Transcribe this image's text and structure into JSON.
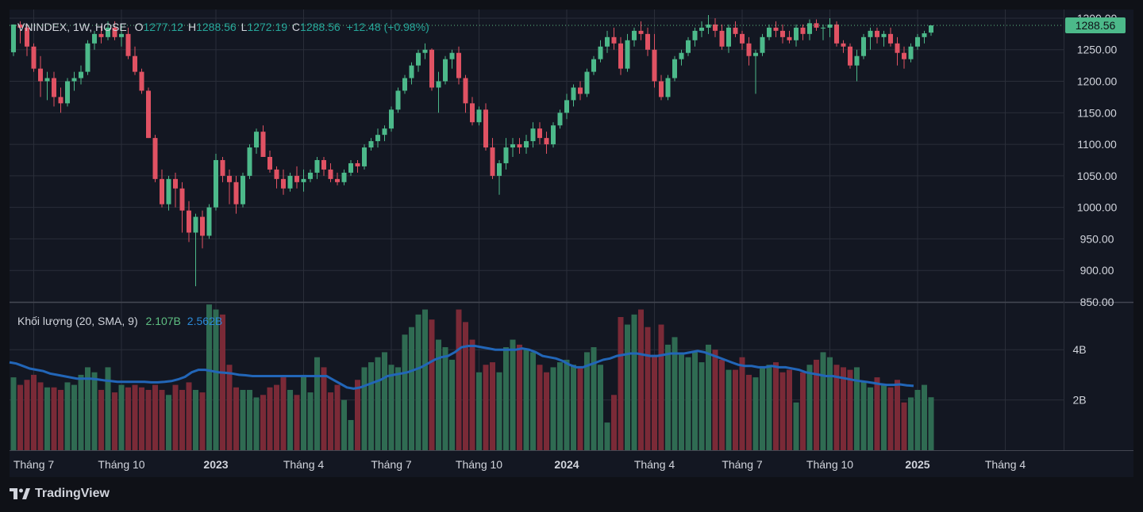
{
  "header": {
    "symbol": "VNINDEX, 1W, HOSE",
    "o_label": "O",
    "o": "1277.12",
    "h_label": "H",
    "h": "1288.56",
    "l_label": "L",
    "l": "1272.19",
    "c_label": "C",
    "c": "1288.56",
    "change": "+12.48 (+0.98%)"
  },
  "volume_legend": {
    "label": "Khối lượng (20, SMA, 9)",
    "volume": "2.107B",
    "sma": "2.562B"
  },
  "brand": "TradingView",
  "colors": {
    "background": "#0f1117",
    "grid": "#2a2e39",
    "up": "#4cb98a",
    "down": "#e05263",
    "up_volume": "#2f6b52",
    "down_volume": "#7a2a37",
    "sma_line": "#2266b8",
    "text": "#d1d4dc",
    "price_label_bg": "#4cb98a"
  },
  "chart_data": {
    "type": "candlestick",
    "title": "VNINDEX, 1W, HOSE",
    "last_price": "1288.56",
    "price_ticks": [
      "1300.00",
      "1250.00",
      "1200.00",
      "1150.00",
      "1100.00",
      "1050.00",
      "1000.00",
      "950.00",
      "900.00",
      "850.00"
    ],
    "price_tick_values": [
      1300,
      1250,
      1200,
      1150,
      1100,
      1050,
      1000,
      950,
      900,
      850
    ],
    "ylim": [
      850,
      1310
    ],
    "volume_ticks": [
      "4B",
      "2B"
    ],
    "volume_tick_values": [
      4,
      2
    ],
    "volume_ylim": [
      0,
      5.9
    ],
    "x_labels": [
      {
        "text": "Tháng 7",
        "i": 3,
        "bold": false
      },
      {
        "text": "Tháng 10",
        "i": 16,
        "bold": false
      },
      {
        "text": "2023",
        "i": 30,
        "bold": true
      },
      {
        "text": "Tháng 4",
        "i": 43,
        "bold": false
      },
      {
        "text": "Tháng 7",
        "i": 56,
        "bold": false
      },
      {
        "text": "Tháng 10",
        "i": 69,
        "bold": false
      },
      {
        "text": "2024",
        "i": 82,
        "bold": true
      },
      {
        "text": "Tháng 4",
        "i": 95,
        "bold": false
      },
      {
        "text": "Tháng 7",
        "i": 108,
        "bold": false
      },
      {
        "text": "Tháng 10",
        "i": 121,
        "bold": false
      },
      {
        "text": "2025",
        "i": 134,
        "bold": true
      },
      {
        "text": "Tháng 4",
        "i": 147,
        "bold": false
      }
    ],
    "volume_unit": "B",
    "candles": [
      [
        1246,
        1290,
        1240,
        1290,
        2.9
      ],
      [
        1290,
        1295,
        1260,
        1285,
        2.6
      ],
      [
        1285,
        1290,
        1240,
        1255,
        2.8
      ],
      [
        1255,
        1260,
        1215,
        1220,
        3.0
      ],
      [
        1220,
        1240,
        1175,
        1200,
        2.7
      ],
      [
        1200,
        1215,
        1170,
        1205,
        2.5
      ],
      [
        1205,
        1215,
        1160,
        1175,
        2.5
      ],
      [
        1175,
        1190,
        1150,
        1165,
        2.4
      ],
      [
        1165,
        1205,
        1160,
        1200,
        2.7
      ],
      [
        1200,
        1215,
        1185,
        1205,
        2.6
      ],
      [
        1205,
        1225,
        1195,
        1215,
        3.0
      ],
      [
        1215,
        1265,
        1210,
        1260,
        3.3
      ],
      [
        1260,
        1280,
        1250,
        1275,
        3.1
      ],
      [
        1275,
        1288,
        1260,
        1270,
        2.4
      ],
      [
        1270,
        1295,
        1265,
        1285,
        3.3
      ],
      [
        1285,
        1295,
        1265,
        1270,
        2.3
      ],
      [
        1270,
        1290,
        1255,
        1275,
        2.6
      ],
      [
        1275,
        1285,
        1235,
        1240,
        2.5
      ],
      [
        1240,
        1255,
        1210,
        1215,
        2.6
      ],
      [
        1215,
        1220,
        1180,
        1185,
        2.5
      ],
      [
        1185,
        1190,
        1110,
        1110,
        2.4
      ],
      [
        1110,
        1115,
        1040,
        1045,
        2.6
      ],
      [
        1045,
        1060,
        1000,
        1005,
        2.4
      ],
      [
        1005,
        1050,
        995,
        1045,
        2.2
      ],
      [
        1045,
        1055,
        1000,
        1030,
        2.6
      ],
      [
        1030,
        1040,
        960,
        995,
        2.4
      ],
      [
        995,
        1010,
        945,
        960,
        2.7
      ],
      [
        960,
        990,
        875,
        985,
        2.4
      ],
      [
        985,
        995,
        935,
        955,
        2.3
      ],
      [
        955,
        1005,
        950,
        1000,
        5.8
      ],
      [
        1000,
        1085,
        995,
        1075,
        5.6
      ],
      [
        1075,
        1080,
        1040,
        1050,
        5.4
      ],
      [
        1050,
        1060,
        1005,
        1040,
        3.4
      ],
      [
        1040,
        1050,
        990,
        1005,
        2.5
      ],
      [
        1005,
        1055,
        1000,
        1050,
        2.4
      ],
      [
        1050,
        1100,
        1045,
        1095,
        2.4
      ],
      [
        1095,
        1125,
        1085,
        1120,
        2.1
      ],
      [
        1120,
        1130,
        1080,
        1080,
        2.2
      ],
      [
        1080,
        1090,
        1055,
        1060,
        2.5
      ],
      [
        1060,
        1065,
        1030,
        1045,
        2.6
      ],
      [
        1045,
        1060,
        1020,
        1030,
        2.9
      ],
      [
        1030,
        1055,
        1025,
        1050,
        2.4
      ],
      [
        1050,
        1065,
        1030,
        1040,
        2.2
      ],
      [
        1040,
        1060,
        1025,
        1045,
        3.0
      ],
      [
        1045,
        1060,
        1040,
        1055,
        2.3
      ],
      [
        1055,
        1080,
        1045,
        1075,
        3.7
      ],
      [
        1075,
        1080,
        1050,
        1060,
        3.3
      ],
      [
        1060,
        1070,
        1040,
        1045,
        2.3
      ],
      [
        1045,
        1055,
        1035,
        1040,
        2.6
      ],
      [
        1040,
        1060,
        1035,
        1055,
        2.0
      ],
      [
        1055,
        1075,
        1050,
        1070,
        1.2
      ],
      [
        1070,
        1075,
        1055,
        1065,
        2.8
      ],
      [
        1065,
        1100,
        1060,
        1095,
        3.3
      ],
      [
        1095,
        1110,
        1090,
        1105,
        3.5
      ],
      [
        1105,
        1125,
        1095,
        1115,
        3.7
      ],
      [
        1115,
        1130,
        1105,
        1125,
        3.9
      ],
      [
        1125,
        1160,
        1120,
        1155,
        3.4
      ],
      [
        1155,
        1190,
        1150,
        1185,
        3.3
      ],
      [
        1185,
        1210,
        1180,
        1205,
        4.6
      ],
      [
        1205,
        1230,
        1195,
        1225,
        4.9
      ],
      [
        1225,
        1250,
        1215,
        1245,
        5.4
      ],
      [
        1245,
        1260,
        1235,
        1250,
        5.6
      ],
      [
        1250,
        1252,
        1185,
        1190,
        5.2
      ],
      [
        1190,
        1215,
        1150,
        1200,
        4.4
      ],
      [
        1200,
        1240,
        1195,
        1235,
        4.1
      ],
      [
        1235,
        1250,
        1220,
        1245,
        3.6
      ],
      [
        1245,
        1255,
        1195,
        1205,
        5.6
      ],
      [
        1205,
        1210,
        1150,
        1165,
        5.1
      ],
      [
        1165,
        1175,
        1130,
        1135,
        4.4
      ],
      [
        1135,
        1160,
        1130,
        1155,
        3.1
      ],
      [
        1155,
        1165,
        1090,
        1095,
        3.4
      ],
      [
        1095,
        1110,
        1045,
        1050,
        3.5
      ],
      [
        1050,
        1075,
        1020,
        1070,
        3.1
      ],
      [
        1070,
        1110,
        1060,
        1095,
        4.1
      ],
      [
        1095,
        1110,
        1080,
        1100,
        4.4
      ],
      [
        1100,
        1110,
        1085,
        1095,
        4.2
      ],
      [
        1095,
        1115,
        1085,
        1105,
        4.0
      ],
      [
        1105,
        1135,
        1095,
        1125,
        3.9
      ],
      [
        1125,
        1135,
        1100,
        1110,
        3.4
      ],
      [
        1110,
        1120,
        1085,
        1100,
        3.1
      ],
      [
        1100,
        1135,
        1095,
        1130,
        3.3
      ],
      [
        1130,
        1155,
        1125,
        1150,
        3.5
      ],
      [
        1150,
        1180,
        1140,
        1170,
        3.6
      ],
      [
        1170,
        1195,
        1160,
        1190,
        3.4
      ],
      [
        1190,
        1200,
        1170,
        1180,
        3.3
      ],
      [
        1180,
        1220,
        1175,
        1215,
        3.9
      ],
      [
        1215,
        1240,
        1210,
        1235,
        4.1
      ],
      [
        1235,
        1265,
        1230,
        1255,
        3.4
      ],
      [
        1255,
        1280,
        1245,
        1270,
        1.1
      ],
      [
        1270,
        1285,
        1250,
        1260,
        2.2
      ],
      [
        1260,
        1270,
        1210,
        1220,
        5.3
      ],
      [
        1220,
        1275,
        1215,
        1265,
        5.0
      ],
      [
        1265,
        1285,
        1255,
        1280,
        5.4
      ],
      [
        1280,
        1295,
        1265,
        1275,
        5.6
      ],
      [
        1275,
        1285,
        1240,
        1250,
        4.9
      ],
      [
        1250,
        1275,
        1190,
        1200,
        3.8
      ],
      [
        1200,
        1210,
        1170,
        1175,
        5.0
      ],
      [
        1175,
        1210,
        1170,
        1205,
        4.2
      ],
      [
        1205,
        1240,
        1200,
        1235,
        4.5
      ],
      [
        1235,
        1250,
        1225,
        1245,
        3.8
      ],
      [
        1245,
        1270,
        1240,
        1265,
        3.7
      ],
      [
        1265,
        1285,
        1255,
        1280,
        3.9
      ],
      [
        1280,
        1295,
        1270,
        1285,
        3.5
      ],
      [
        1285,
        1305,
        1275,
        1290,
        4.2
      ],
      [
        1290,
        1300,
        1270,
        1280,
        4.0
      ],
      [
        1280,
        1290,
        1250,
        1255,
        3.6
      ],
      [
        1255,
        1290,
        1245,
        1285,
        3.2
      ],
      [
        1285,
        1295,
        1270,
        1275,
        3.2
      ],
      [
        1275,
        1280,
        1250,
        1260,
        3.7
      ],
      [
        1260,
        1270,
        1225,
        1240,
        3.0
      ],
      [
        1240,
        1250,
        1180,
        1245,
        2.9
      ],
      [
        1245,
        1275,
        1240,
        1270,
        3.3
      ],
      [
        1270,
        1290,
        1265,
        1285,
        3.4
      ],
      [
        1285,
        1295,
        1270,
        1280,
        3.5
      ],
      [
        1280,
        1290,
        1260,
        1270,
        3.1
      ],
      [
        1270,
        1280,
        1260,
        1265,
        3.2
      ],
      [
        1265,
        1290,
        1255,
        1285,
        1.9
      ],
      [
        1285,
        1290,
        1265,
        1275,
        3.1
      ],
      [
        1275,
        1298,
        1265,
        1292,
        3.4
      ],
      [
        1292,
        1298,
        1280,
        1285,
        3.6
      ],
      [
        1285,
        1290,
        1265,
        1285,
        3.9
      ],
      [
        1285,
        1300,
        1270,
        1290,
        3.7
      ],
      [
        1290,
        1295,
        1255,
        1260,
        3.4
      ],
      [
        1260,
        1265,
        1245,
        1255,
        3.3
      ],
      [
        1255,
        1260,
        1220,
        1225,
        3.2
      ],
      [
        1225,
        1250,
        1200,
        1240,
        3.3
      ],
      [
        1240,
        1275,
        1235,
        1270,
        2.7
      ],
      [
        1270,
        1285,
        1250,
        1280,
        2.5
      ],
      [
        1280,
        1285,
        1260,
        1270,
        2.9
      ],
      [
        1270,
        1280,
        1255,
        1275,
        2.6
      ],
      [
        1275,
        1285,
        1255,
        1260,
        2.5
      ],
      [
        1260,
        1270,
        1225,
        1245,
        2.8
      ],
      [
        1245,
        1255,
        1220,
        1235,
        1.9
      ],
      [
        1235,
        1260,
        1230,
        1255,
        2.1
      ],
      [
        1255,
        1275,
        1250,
        1270,
        2.4
      ],
      [
        1270,
        1280,
        1260,
        1276,
        2.6
      ],
      [
        1277.12,
        1288.56,
        1272.19,
        1288.56,
        2.107
      ]
    ],
    "sma": [
      3.5,
      3.45,
      3.35,
      3.25,
      3.2,
      3.15,
      3.05,
      3.0,
      2.95,
      2.9,
      2.85,
      2.85,
      2.85,
      2.82,
      2.78,
      2.75,
      2.72,
      2.72,
      2.72,
      2.72,
      2.72,
      2.7,
      2.7,
      2.72,
      2.75,
      2.82,
      2.92,
      3.1,
      3.2,
      3.2,
      3.15,
      3.1,
      3.08,
      3.05,
      3.0,
      2.98,
      2.95,
      2.95,
      2.95,
      2.95,
      2.95,
      2.95,
      2.95,
      2.95,
      2.95,
      2.95,
      2.95,
      2.95,
      2.8,
      2.65,
      2.5,
      2.45,
      2.5,
      2.6,
      2.7,
      2.8,
      2.95,
      3.0,
      3.05,
      3.1,
      3.2,
      3.3,
      3.45,
      3.6,
      3.7,
      3.75,
      3.9,
      4.1,
      4.15,
      4.15,
      4.1,
      4.05,
      4.0,
      4.0,
      4.0,
      4.0,
      4.05,
      4.0,
      3.9,
      3.75,
      3.7,
      3.65,
      3.55,
      3.4,
      3.3,
      3.3,
      3.4,
      3.5,
      3.6,
      3.65,
      3.75,
      3.8,
      3.85,
      3.85,
      3.8,
      3.75,
      3.75,
      3.8,
      3.85,
      3.85,
      3.85,
      3.9,
      3.95,
      3.9,
      3.8,
      3.7,
      3.6,
      3.5,
      3.4,
      3.35,
      3.35,
      3.3,
      3.3,
      3.35,
      3.3,
      3.3,
      3.25,
      3.2,
      3.1,
      3.05,
      3.0,
      2.95,
      2.95,
      2.9,
      2.85,
      2.8,
      2.75,
      2.72,
      2.68,
      2.63,
      2.6,
      2.6,
      2.62,
      2.58,
      2.56
    ]
  }
}
